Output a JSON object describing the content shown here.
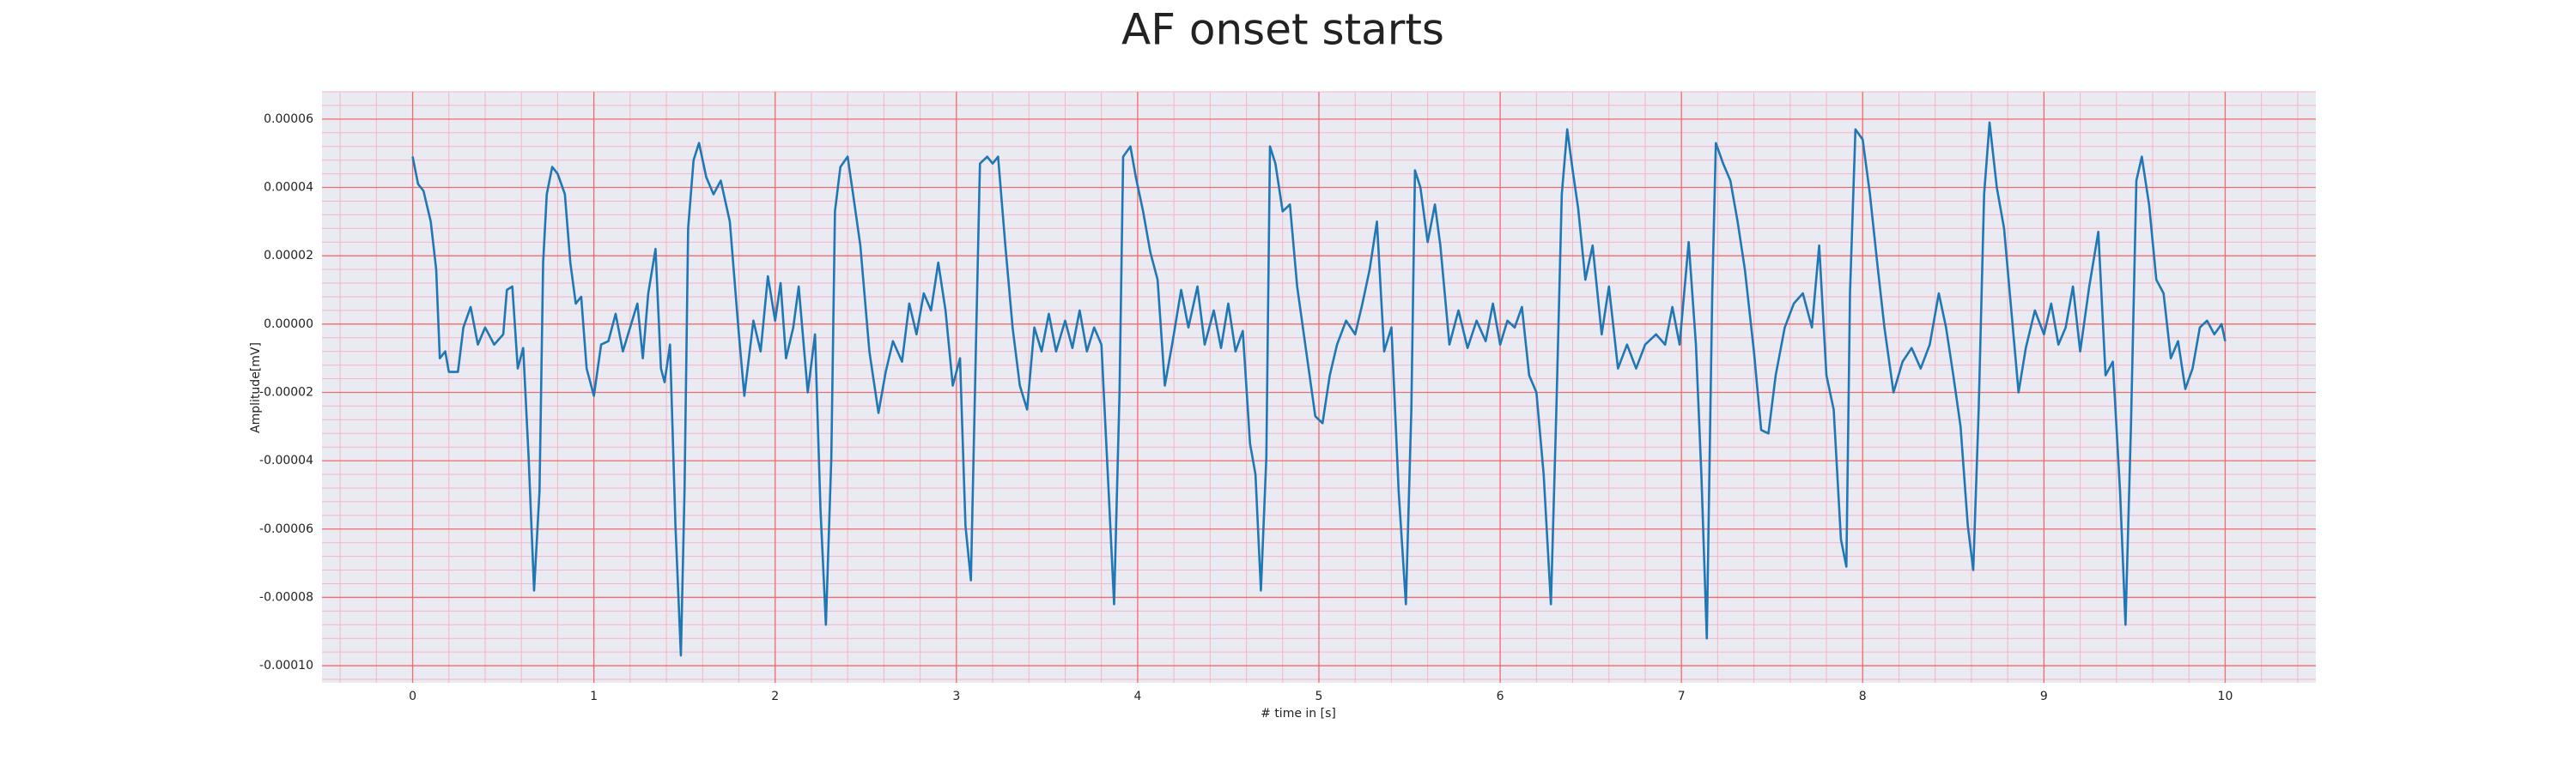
{
  "chart_data": {
    "type": "line",
    "title": "AF onset starts",
    "xlabel": "# time in [s]",
    "ylabel": "Amplitude[mV]",
    "color": "#1f77b4",
    "grid": true,
    "minor_grid": true,
    "xlim": [
      -0.5,
      10.5
    ],
    "ylim": [
      -0.000105,
      6.8e-05
    ],
    "xticks": [
      0,
      1,
      2,
      3,
      4,
      5,
      6,
      7,
      8,
      9,
      10
    ],
    "yticks": [
      6e-05,
      4e-05,
      2e-05,
      {
        "value": 0,
        "label": "0.00000"
      },
      -2e-05,
      -4e-05,
      -6e-05,
      -8e-05,
      {
        "value": -0.0001,
        "label": "-0.00010"
      }
    ],
    "x": [
      0,
      0.03,
      0.06,
      0.1,
      0.13,
      0.15,
      0.18,
      0.2,
      0.25,
      0.28,
      0.32,
      0.36,
      0.4,
      0.45,
      0.5,
      0.52,
      0.55,
      0.58,
      0.61,
      0.64,
      0.67,
      0.7,
      0.72,
      0.74,
      0.77,
      0.8,
      0.84,
      0.87,
      0.9,
      0.93,
      0.96,
      1.0,
      1.04,
      1.08,
      1.12,
      1.16,
      1.2,
      1.24,
      1.27,
      1.3,
      1.34,
      1.37,
      1.39,
      1.42,
      1.45,
      1.48,
      1.5,
      1.52,
      1.55,
      1.58,
      1.62,
      1.66,
      1.7,
      1.75,
      1.8,
      1.83,
      1.88,
      1.92,
      1.96,
      2.0,
      2.03,
      2.06,
      2.1,
      2.13,
      2.18,
      2.22,
      2.25,
      2.28,
      2.31,
      2.33,
      2.36,
      2.4,
      2.43,
      2.47,
      2.52,
      2.57,
      2.61,
      2.65,
      2.7,
      2.74,
      2.78,
      2.82,
      2.86,
      2.9,
      2.94,
      2.98,
      3.02,
      3.05,
      3.08,
      3.11,
      3.13,
      3.17,
      3.2,
      3.23,
      3.27,
      3.31,
      3.35,
      3.39,
      3.43,
      3.47,
      3.51,
      3.55,
      3.6,
      3.64,
      3.68,
      3.72,
      3.76,
      3.8,
      3.84,
      3.87,
      3.9,
      3.92,
      3.96,
      3.99,
      4.03,
      4.07,
      4.11,
      4.15,
      4.19,
      4.24,
      4.28,
      4.33,
      4.37,
      4.42,
      4.46,
      4.5,
      4.54,
      4.58,
      4.62,
      4.65,
      4.68,
      4.71,
      4.73,
      4.76,
      4.8,
      4.84,
      4.88,
      4.93,
      4.98,
      5.02,
      5.06,
      5.1,
      5.15,
      5.2,
      5.24,
      5.28,
      5.32,
      5.36,
      5.4,
      5.44,
      5.48,
      5.51,
      5.53,
      5.56,
      5.6,
      5.64,
      5.67,
      5.72,
      5.77,
      5.82,
      5.87,
      5.92,
      5.96,
      6.0,
      6.04,
      6.08,
      6.12,
      6.16,
      6.2,
      6.24,
      6.28,
      6.31,
      6.34,
      6.37,
      6.4,
      6.43,
      6.47,
      6.51,
      6.56,
      6.6,
      6.65,
      6.7,
      6.75,
      6.8,
      6.86,
      6.91,
      6.95,
      6.99,
      7.04,
      7.08,
      7.11,
      7.14,
      7.17,
      7.19,
      7.23,
      7.27,
      7.31,
      7.35,
      7.4,
      7.44,
      7.48,
      7.52,
      7.57,
      7.62,
      7.67,
      7.72,
      7.76,
      7.8,
      7.84,
      7.88,
      7.91,
      7.93,
      7.96,
      8.0,
      8.04,
      8.08,
      8.12,
      8.17,
      8.22,
      8.27,
      8.32,
      8.37,
      8.42,
      8.46,
      8.5,
      8.54,
      8.58,
      8.61,
      8.64,
      8.67,
      8.7,
      8.74,
      8.78,
      8.82,
      8.86,
      8.9,
      8.95,
      9.0,
      9.04,
      9.08,
      9.12,
      9.16,
      9.2,
      9.25,
      9.3,
      9.34,
      9.38,
      9.42,
      9.45,
      9.48,
      9.51,
      9.54,
      9.58,
      9.62,
      9.66,
      9.7,
      9.74,
      9.78,
      9.82,
      9.86,
      9.9,
      9.94,
      9.98,
      10.0
    ],
    "values": [
      4.9e-05,
      4.1e-05,
      3.9e-05,
      3e-05,
      1.6e-05,
      -1e-05,
      -8e-06,
      -1.4e-05,
      -1.4e-05,
      -1e-06,
      5e-06,
      -6e-06,
      -1e-06,
      -6e-06,
      -3e-06,
      1e-05,
      1.1e-05,
      -1.3e-05,
      -7e-06,
      -3.9e-05,
      -7.8e-05,
      -4.9e-05,
      1.8e-05,
      3.8e-05,
      4.6e-05,
      4.4e-05,
      3.8e-05,
      1.8e-05,
      6e-06,
      8e-06,
      -1.3e-05,
      -2.1e-05,
      -6e-06,
      -5e-06,
      3e-06,
      -8e-06,
      -1e-06,
      6e-06,
      -1e-05,
      9e-06,
      2.2e-05,
      -1.3e-05,
      -1.7e-05,
      -6e-06,
      -5.9e-05,
      -9.7e-05,
      -4.9e-05,
      2.8e-05,
      4.8e-05,
      5.3e-05,
      4.3e-05,
      3.8e-05,
      4.2e-05,
      3e-05,
      -3e-06,
      -2.1e-05,
      1e-06,
      -8e-06,
      1.4e-05,
      1e-06,
      1.2e-05,
      -1e-05,
      -1e-06,
      1.1e-05,
      -2e-05,
      -3e-06,
      -5.4e-05,
      -8.8e-05,
      -3.9e-05,
      3.3e-05,
      4.6e-05,
      4.9e-05,
      3.8e-05,
      2.3e-05,
      -8e-06,
      -2.6e-05,
      -1.4e-05,
      -5e-06,
      -1.1e-05,
      6e-06,
      -3e-06,
      9e-06,
      4e-06,
      1.8e-05,
      4e-06,
      -1.8e-05,
      -1e-05,
      -5.9e-05,
      -7.5e-05,
      -1e-06,
      4.7e-05,
      4.9e-05,
      4.7e-05,
      4.9e-05,
      2.3e-05,
      -1e-06,
      -1.8e-05,
      -2.5e-05,
      -1e-06,
      -8e-06,
      3e-06,
      -8e-06,
      1e-06,
      -7e-06,
      4e-06,
      -8e-06,
      -1e-06,
      -6e-06,
      -4.9e-05,
      -8.2e-05,
      -2e-05,
      4.9e-05,
      5.2e-05,
      4.3e-05,
      3.3e-05,
      2.1e-05,
      1.3e-05,
      -1.8e-05,
      -6e-06,
      1e-05,
      -1e-06,
      1.1e-05,
      -6e-06,
      4e-06,
      -7e-06,
      6e-06,
      -8e-06,
      -2e-06,
      -3.5e-05,
      -4.4e-05,
      -7.8e-05,
      -3.9e-05,
      5.2e-05,
      4.7e-05,
      3.3e-05,
      3.5e-05,
      1.1e-05,
      -8e-06,
      -2.7e-05,
      -2.9e-05,
      -1.5e-05,
      -6e-06,
      1e-06,
      -3e-06,
      6e-06,
      1.6e-05,
      3e-05,
      -8e-06,
      -1e-06,
      -4.9e-05,
      -8.2e-05,
      -2.5e-05,
      4.5e-05,
      4e-05,
      2.4e-05,
      3.5e-05,
      2.3e-05,
      -6e-06,
      4e-06,
      -7e-06,
      1e-06,
      -5e-06,
      6e-06,
      -6e-06,
      1e-06,
      -1e-06,
      5e-06,
      -1.5e-05,
      -2e-05,
      -4.4e-05,
      -8.2e-05,
      -2.5e-05,
      3.8e-05,
      5.7e-05,
      4.5e-05,
      3.4e-05,
      1.3e-05,
      2.3e-05,
      -3e-06,
      1.1e-05,
      -1.3e-05,
      -6e-06,
      -1.3e-05,
      -6e-06,
      -3e-06,
      -6e-06,
      5e-06,
      -6e-06,
      2.4e-05,
      -6e-06,
      -4.4e-05,
      -9.2e-05,
      9e-06,
      5.3e-05,
      4.7e-05,
      4.2e-05,
      3e-05,
      1.6e-05,
      -8e-06,
      -3.1e-05,
      -3.2e-05,
      -1.5e-05,
      -1e-06,
      6e-06,
      9e-06,
      -1e-06,
      2.3e-05,
      -1.5e-05,
      -2.5e-05,
      -6.3e-05,
      -7.1e-05,
      9e-06,
      5.7e-05,
      5.4e-05,
      3.8e-05,
      1.8e-05,
      -1e-06,
      -2e-05,
      -1.1e-05,
      -7e-06,
      -1.3e-05,
      -6e-06,
      9e-06,
      -1e-06,
      -1.5e-05,
      -3e-05,
      -5.9e-05,
      -7.2e-05,
      -2.5e-05,
      3.8e-05,
      5.9e-05,
      4e-05,
      2.8e-05,
      4e-06,
      -2e-05,
      -7e-06,
      4e-06,
      -3e-06,
      6e-06,
      -6e-06,
      -1e-06,
      1.1e-05,
      -8e-06,
      1.1e-05,
      2.7e-05,
      -1.5e-05,
      -1.1e-05,
      -4.9e-05,
      -8.8e-05,
      -3e-05,
      4.2e-05,
      4.9e-05,
      3.5e-05,
      1.3e-05,
      9e-06,
      -1e-05,
      -5e-06,
      -1.9e-05,
      -1.3e-05,
      -1e-06,
      1e-06,
      -3e-06,
      0.0,
      -5e-06
    ]
  }
}
